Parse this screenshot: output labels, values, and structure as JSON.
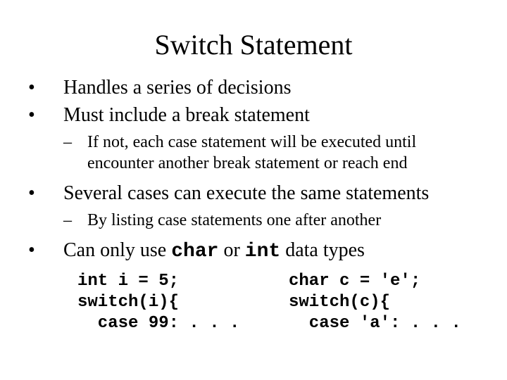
{
  "colors": {
    "background": "#ffffff",
    "text": "#000000"
  },
  "typography": {
    "body_font": "Times New Roman",
    "mono_font": "Courier New",
    "title_fontsize": 40,
    "l1_fontsize": 28,
    "l2_fontsize": 24,
    "code_fontsize": 24
  },
  "title": "Switch Statement",
  "bullets": {
    "b1": "Handles a series of decisions",
    "b2": "Must include a break statement",
    "b2_sub": "If not, each case statement will be executed until encounter another break statement or reach end",
    "b3": "Several cases can execute the same statements",
    "b3_sub": "By listing case statements one after another",
    "b4_pre": "Can only use ",
    "b4_code1": "char",
    "b4_mid": " or ",
    "b4_code2": "int",
    "b4_post": " data types"
  },
  "code": {
    "left": "int i = 5;\nswitch(i){\n  case 99: . . .",
    "right": "char c = 'e';\nswitch(c){\n  case 'a': . . ."
  }
}
